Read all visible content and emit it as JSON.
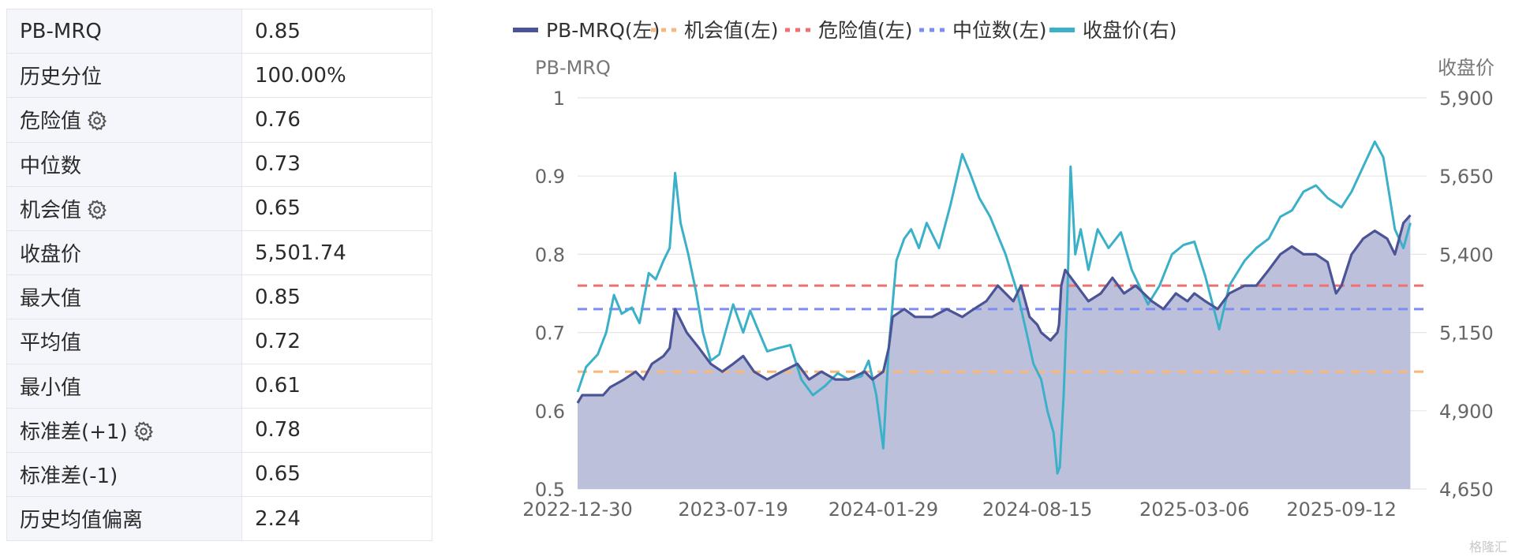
{
  "stats": [
    {
      "label": "PB-MRQ",
      "value": "0.85",
      "gear": false
    },
    {
      "label": "历史分位",
      "value": "100.00%",
      "gear": false
    },
    {
      "label": "危险值",
      "value": "0.76",
      "gear": true
    },
    {
      "label": "中位数",
      "value": "0.73",
      "gear": false
    },
    {
      "label": "机会值",
      "value": "0.65",
      "gear": true
    },
    {
      "label": "收盘价",
      "value": "5,501.74",
      "gear": false
    },
    {
      "label": "最大值",
      "value": "0.85",
      "gear": false
    },
    {
      "label": "平均值",
      "value": "0.72",
      "gear": false
    },
    {
      "label": "最小值",
      "value": "0.61",
      "gear": false
    },
    {
      "label": "标准差(+1)",
      "value": "0.78",
      "gear": true
    },
    {
      "label": "标准差(-1)",
      "value": "0.65",
      "gear": false
    },
    {
      "label": "历史均值偏离",
      "value": "2.24",
      "gear": false
    }
  ],
  "watermark": "格隆汇",
  "chart_data": {
    "type": "line",
    "title": "",
    "xlabel": "",
    "ylabel": "PB-MRQ",
    "y2label": "收盘价",
    "ylim": [
      0.5,
      1.0
    ],
    "y2lim": [
      4650,
      5900
    ],
    "yticks": [
      "0.5",
      "0.6",
      "0.7",
      "0.8",
      "0.9",
      "1"
    ],
    "y2ticks": [
      "4,650",
      "4,900",
      "5,150",
      "5,400",
      "5,650",
      "5,900"
    ],
    "xlim": [
      "2022-12-30",
      "2025-12-31"
    ],
    "xticks": [
      "2022-12-30",
      "2023-07-19",
      "2024-01-29",
      "2024-08-15",
      "2025-03-06",
      "2025-09-12"
    ],
    "grid": true,
    "legend_position": "top",
    "series": [
      {
        "name": "PB-MRQ(左)",
        "axis": "left",
        "color": "#4a5496",
        "fill": "#b9bdd8",
        "style": "solid",
        "points": [
          [
            "2022-12-30",
            0.61
          ],
          [
            "2023-01-05",
            0.62
          ],
          [
            "2023-02-01",
            0.62
          ],
          [
            "2023-02-10",
            0.63
          ],
          [
            "2023-02-28",
            0.64
          ],
          [
            "2023-03-15",
            0.65
          ],
          [
            "2023-03-25",
            0.64
          ],
          [
            "2023-04-05",
            0.66
          ],
          [
            "2023-04-20",
            0.67
          ],
          [
            "2023-04-28",
            0.68
          ],
          [
            "2023-05-05",
            0.73
          ],
          [
            "2023-05-10",
            0.72
          ],
          [
            "2023-05-20",
            0.7
          ],
          [
            "2023-06-05",
            0.68
          ],
          [
            "2023-06-20",
            0.66
          ],
          [
            "2023-07-05",
            0.65
          ],
          [
            "2023-07-19",
            0.66
          ],
          [
            "2023-08-01",
            0.67
          ],
          [
            "2023-08-15",
            0.65
          ],
          [
            "2023-09-01",
            0.64
          ],
          [
            "2023-09-20",
            0.65
          ],
          [
            "2023-10-10",
            0.66
          ],
          [
            "2023-10-25",
            0.64
          ],
          [
            "2023-11-10",
            0.65
          ],
          [
            "2023-11-28",
            0.64
          ],
          [
            "2023-12-15",
            0.64
          ],
          [
            "2024-01-05",
            0.65
          ],
          [
            "2024-01-15",
            0.64
          ],
          [
            "2024-01-29",
            0.65
          ],
          [
            "2024-02-05",
            0.68
          ],
          [
            "2024-02-10",
            0.72
          ],
          [
            "2024-02-25",
            0.73
          ],
          [
            "2024-03-10",
            0.72
          ],
          [
            "2024-04-01",
            0.72
          ],
          [
            "2024-04-20",
            0.73
          ],
          [
            "2024-05-10",
            0.72
          ],
          [
            "2024-05-25",
            0.73
          ],
          [
            "2024-06-10",
            0.74
          ],
          [
            "2024-06-25",
            0.76
          ],
          [
            "2024-07-05",
            0.75
          ],
          [
            "2024-07-15",
            0.74
          ],
          [
            "2024-07-25",
            0.76
          ],
          [
            "2024-08-05",
            0.72
          ],
          [
            "2024-08-15",
            0.71
          ],
          [
            "2024-08-20",
            0.7
          ],
          [
            "2024-09-01",
            0.69
          ],
          [
            "2024-09-10",
            0.7
          ],
          [
            "2024-09-12",
            0.71
          ],
          [
            "2024-09-15",
            0.76
          ],
          [
            "2024-09-20",
            0.78
          ],
          [
            "2024-10-05",
            0.76
          ],
          [
            "2024-10-20",
            0.74
          ],
          [
            "2024-11-05",
            0.75
          ],
          [
            "2024-11-20",
            0.77
          ],
          [
            "2024-12-05",
            0.75
          ],
          [
            "2024-12-20",
            0.76
          ],
          [
            "2025-01-10",
            0.74
          ],
          [
            "2025-01-25",
            0.73
          ],
          [
            "2025-02-10",
            0.75
          ],
          [
            "2025-02-25",
            0.74
          ],
          [
            "2025-03-06",
            0.75
          ],
          [
            "2025-03-20",
            0.74
          ],
          [
            "2025-04-05",
            0.73
          ],
          [
            "2025-04-20",
            0.75
          ],
          [
            "2025-05-10",
            0.76
          ],
          [
            "2025-05-25",
            0.76
          ],
          [
            "2025-06-10",
            0.78
          ],
          [
            "2025-06-25",
            0.8
          ],
          [
            "2025-07-10",
            0.81
          ],
          [
            "2025-07-25",
            0.8
          ],
          [
            "2025-08-10",
            0.8
          ],
          [
            "2025-08-25",
            0.79
          ],
          [
            "2025-09-05",
            0.75
          ],
          [
            "2025-09-12",
            0.76
          ],
          [
            "2025-09-25",
            0.8
          ],
          [
            "2025-10-10",
            0.82
          ],
          [
            "2025-10-25",
            0.83
          ],
          [
            "2025-11-10",
            0.82
          ],
          [
            "2025-11-20",
            0.8
          ],
          [
            "2025-12-01",
            0.84
          ],
          [
            "2025-12-10",
            0.85
          ]
        ]
      },
      {
        "name": "机会值(左)",
        "axis": "left",
        "color": "#f9b87a",
        "style": "dashed",
        "value": 0.65
      },
      {
        "name": "危险值(左)",
        "axis": "left",
        "color": "#ee7070",
        "style": "dashed",
        "value": 0.76
      },
      {
        "name": "中位数(左)",
        "axis": "left",
        "color": "#7c8cf0",
        "style": "dashed",
        "value": 0.73
      },
      {
        "name": "收盘价(右)",
        "axis": "right",
        "color": "#3bb0c9",
        "style": "solid",
        "points": [
          [
            "2022-12-30",
            4960
          ],
          [
            "2023-01-10",
            5040
          ],
          [
            "2023-01-25",
            5080
          ],
          [
            "2023-02-05",
            5150
          ],
          [
            "2023-02-15",
            5270
          ],
          [
            "2023-02-25",
            5210
          ],
          [
            "2023-03-10",
            5230
          ],
          [
            "2023-03-20",
            5180
          ],
          [
            "2023-04-01",
            5340
          ],
          [
            "2023-04-10",
            5320
          ],
          [
            "2023-04-20",
            5380
          ],
          [
            "2023-04-28",
            5420
          ],
          [
            "2023-05-05",
            5660
          ],
          [
            "2023-05-12",
            5500
          ],
          [
            "2023-05-22",
            5400
          ],
          [
            "2023-06-01",
            5280
          ],
          [
            "2023-06-10",
            5150
          ],
          [
            "2023-06-20",
            5060
          ],
          [
            "2023-07-01",
            5080
          ],
          [
            "2023-07-19",
            5240
          ],
          [
            "2023-08-01",
            5150
          ],
          [
            "2023-08-10",
            5220
          ],
          [
            "2023-08-20",
            5160
          ],
          [
            "2023-09-01",
            5090
          ],
          [
            "2023-09-15",
            5100
          ],
          [
            "2023-10-01",
            5110
          ],
          [
            "2023-10-15",
            5000
          ],
          [
            "2023-10-30",
            4950
          ],
          [
            "2023-11-15",
            4980
          ],
          [
            "2023-12-01",
            5020
          ],
          [
            "2023-12-15",
            5000
          ],
          [
            "2024-01-01",
            5010
          ],
          [
            "2024-01-10",
            5060
          ],
          [
            "2024-01-20",
            4950
          ],
          [
            "2024-01-29",
            4780
          ],
          [
            "2024-02-05",
            5100
          ],
          [
            "2024-02-15",
            5380
          ],
          [
            "2024-02-25",
            5450
          ],
          [
            "2024-03-05",
            5480
          ],
          [
            "2024-03-15",
            5420
          ],
          [
            "2024-03-25",
            5500
          ],
          [
            "2024-04-10",
            5420
          ],
          [
            "2024-04-25",
            5560
          ],
          [
            "2024-05-10",
            5720
          ],
          [
            "2024-05-20",
            5660
          ],
          [
            "2024-06-01",
            5580
          ],
          [
            "2024-06-15",
            5520
          ],
          [
            "2024-06-25",
            5460
          ],
          [
            "2024-07-05",
            5400
          ],
          [
            "2024-07-20",
            5280
          ],
          [
            "2024-08-01",
            5150
          ],
          [
            "2024-08-10",
            5050
          ],
          [
            "2024-08-20",
            5000
          ],
          [
            "2024-08-28",
            4900
          ],
          [
            "2024-09-05",
            4830
          ],
          [
            "2024-09-10",
            4700
          ],
          [
            "2024-09-13",
            4720
          ],
          [
            "2024-09-18",
            4950
          ],
          [
            "2024-09-23",
            5280
          ],
          [
            "2024-09-27",
            5680
          ],
          [
            "2024-10-03",
            5400
          ],
          [
            "2024-10-10",
            5480
          ],
          [
            "2024-10-20",
            5350
          ],
          [
            "2024-11-01",
            5480
          ],
          [
            "2024-11-15",
            5420
          ],
          [
            "2024-12-01",
            5470
          ],
          [
            "2024-12-15",
            5350
          ],
          [
            "2025-01-05",
            5240
          ],
          [
            "2025-01-20",
            5300
          ],
          [
            "2025-02-05",
            5400
          ],
          [
            "2025-02-20",
            5430
          ],
          [
            "2025-03-06",
            5440
          ],
          [
            "2025-03-20",
            5330
          ],
          [
            "2025-04-07",
            5160
          ],
          [
            "2025-04-20",
            5300
          ],
          [
            "2025-05-10",
            5380
          ],
          [
            "2025-05-25",
            5420
          ],
          [
            "2025-06-10",
            5450
          ],
          [
            "2025-06-25",
            5520
          ],
          [
            "2025-07-10",
            5540
          ],
          [
            "2025-07-25",
            5600
          ],
          [
            "2025-08-10",
            5620
          ],
          [
            "2025-08-25",
            5580
          ],
          [
            "2025-09-12",
            5550
          ],
          [
            "2025-09-25",
            5600
          ],
          [
            "2025-10-10",
            5680
          ],
          [
            "2025-10-25",
            5760
          ],
          [
            "2025-11-05",
            5710
          ],
          [
            "2025-11-20",
            5480
          ],
          [
            "2025-12-01",
            5420
          ],
          [
            "2025-12-10",
            5500
          ]
        ]
      }
    ]
  }
}
